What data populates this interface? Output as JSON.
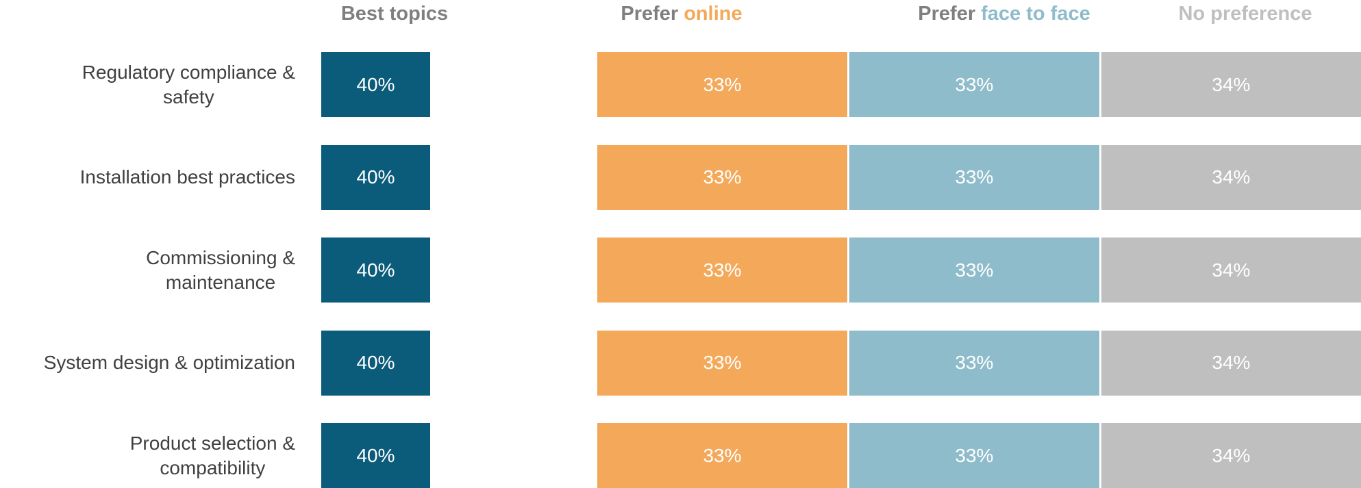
{
  "chart_data": {
    "type": "bar",
    "stacked": true,
    "categories": [
      "Regulatory compliance &\nsafety",
      "Installation best practices",
      "Commissioning &\nmaintenance",
      "System design & optimization",
      "Product selection &\ncompatibility"
    ],
    "best": {
      "name": "Best topics",
      "color": "#0b5b7a",
      "values": [
        40,
        40,
        40,
        40,
        40
      ],
      "value_labels": [
        "40%",
        "40%",
        "40%",
        "40%",
        "40%"
      ]
    },
    "series": [
      {
        "name": [
          "Prefer",
          "online"
        ],
        "color": "#f4a95a",
        "header_color": "#f4a95a",
        "values": [
          33,
          33,
          33,
          33,
          33
        ],
        "value_labels": [
          "33%",
          "33%",
          "33%",
          "33%",
          "33%"
        ]
      },
      {
        "name": [
          "Prefer",
          "face to face"
        ],
        "color": "#8fbccb",
        "header_color": "#8fbccb",
        "values": [
          33,
          33,
          33,
          33,
          33
        ],
        "value_labels": [
          "33%",
          "33%",
          "33%",
          "33%",
          "33%"
        ]
      },
      {
        "name": [
          "No preference"
        ],
        "color": "#bfbfbf",
        "header_color": "#bfbfbf",
        "values": [
          34,
          34,
          34,
          34,
          34
        ],
        "value_labels": [
          "34%",
          "34%",
          "34%",
          "34%",
          "34%"
        ]
      }
    ]
  }
}
